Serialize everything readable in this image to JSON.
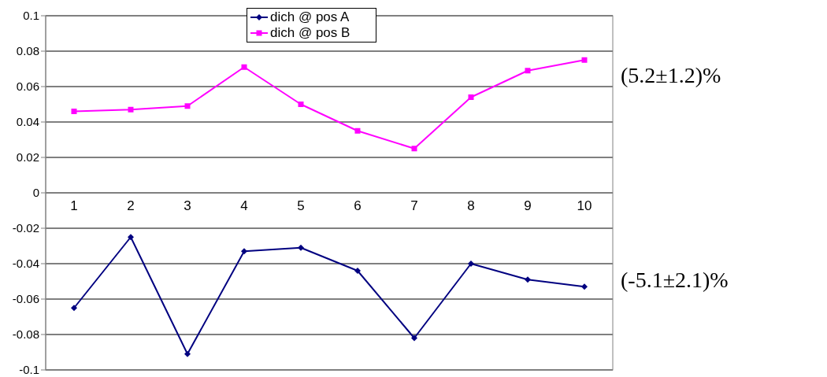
{
  "chart_data": {
    "type": "line",
    "categories": [
      "1",
      "2",
      "3",
      "4",
      "5",
      "6",
      "7",
      "8",
      "9",
      "10"
    ],
    "series": [
      {
        "name": "dich @ pos A",
        "color": "#000080",
        "marker": "diamond",
        "values": [
          -0.065,
          -0.025,
          -0.091,
          -0.033,
          -0.031,
          -0.044,
          -0.082,
          -0.04,
          -0.049,
          -0.053
        ]
      },
      {
        "name": "dich @ pos B",
        "color": "#ff00ff",
        "marker": "square",
        "values": [
          0.046,
          0.047,
          0.049,
          0.071,
          0.05,
          0.035,
          0.025,
          0.054,
          0.069,
          0.075
        ]
      }
    ],
    "ylim": [
      -0.1,
      0.1
    ],
    "yticks": [
      -0.1,
      -0.08,
      -0.06,
      -0.04,
      -0.02,
      0,
      0.02,
      0.04,
      0.06,
      0.08,
      0.1
    ],
    "grid": "y",
    "legend": "top",
    "annotations": [
      "(5.2±1.2)%",
      "(-5.1±2.1)%"
    ]
  }
}
